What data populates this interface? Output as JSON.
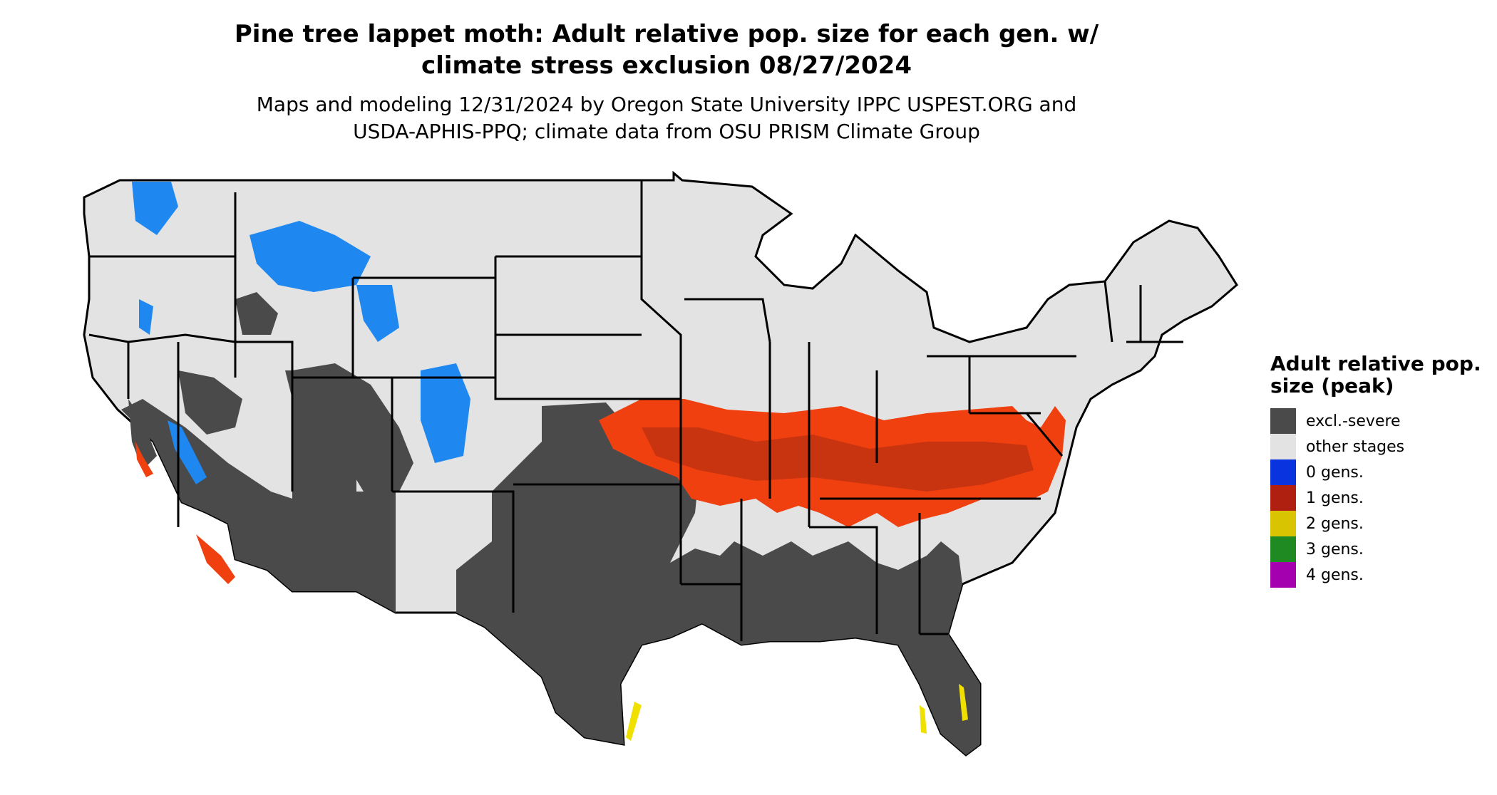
{
  "title_line1": "Pine tree lappet moth: Adult relative pop. size for each gen. w/",
  "title_line2": "climate stress exclusion 08/27/2024",
  "subtitle_line1": "Maps and modeling 12/31/2024 by Oregon State University IPPC USPEST.ORG and",
  "subtitle_line2": "USDA-APHIS-PPQ; climate data from OSU PRISM Climate Group",
  "legend": {
    "title": "Adult relative pop. size (peak)",
    "items": [
      {
        "label": "excl.-severe",
        "color": "#4a4a4a"
      },
      {
        "label": "other stages",
        "color": "#e3e3e3"
      },
      {
        "label": "0 gens.",
        "color": "#0a33e0"
      },
      {
        "label": "1 gens.",
        "color": "#b02010"
      },
      {
        "label": "2 gens.",
        "color": "#d8c400"
      },
      {
        "label": "3 gens.",
        "color": "#208a22"
      },
      {
        "label": "4 gens.",
        "color": "#a400b0"
      }
    ]
  },
  "map_colors": {
    "excluded": "#4a4a4a",
    "other": "#e3e3e3",
    "zero_gens": "#1e88f0",
    "one_gen": "#f04010",
    "one_gen_dark": "#c83410",
    "two_gens": "#f0e000",
    "borders": "#000000"
  }
}
